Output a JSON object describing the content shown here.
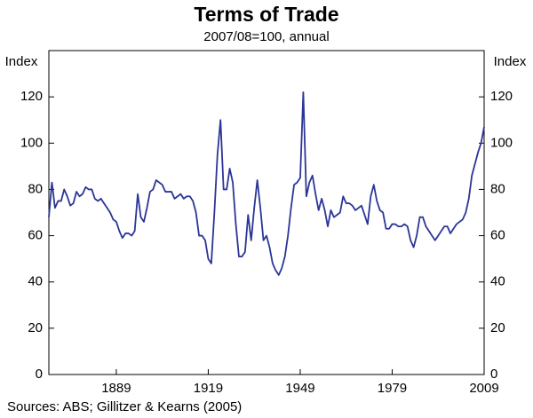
{
  "chart_data": {
    "type": "line",
    "title": "Terms of Trade",
    "subtitle": "2007/08=100, annual",
    "y_label": "Index",
    "y2_label": "Index",
    "source": "Sources: ABS; Gillitzer & Kearns (2005)",
    "xlim": [
      1867,
      2009
    ],
    "xticks": [
      1889,
      1919,
      1949,
      1979,
      2009
    ],
    "ylim": [
      0,
      140
    ],
    "yticks": [
      0,
      20,
      40,
      60,
      80,
      100,
      120
    ],
    "y2lim": [
      0,
      140
    ],
    "y2ticks": [
      0,
      20,
      40,
      60,
      80,
      100,
      120
    ],
    "x": [
      1867,
      1868,
      1869,
      1870,
      1871,
      1872,
      1873,
      1874,
      1875,
      1876,
      1877,
      1878,
      1879,
      1880,
      1881,
      1882,
      1883,
      1884,
      1885,
      1886,
      1887,
      1888,
      1889,
      1890,
      1891,
      1892,
      1893,
      1894,
      1895,
      1896,
      1897,
      1898,
      1899,
      1900,
      1901,
      1902,
      1903,
      1904,
      1905,
      1906,
      1907,
      1908,
      1909,
      1910,
      1911,
      1912,
      1913,
      1914,
      1915,
      1916,
      1917,
      1918,
      1919,
      1920,
      1921,
      1922,
      1923,
      1924,
      1925,
      1926,
      1927,
      1928,
      1929,
      1930,
      1931,
      1932,
      1933,
      1934,
      1935,
      1936,
      1937,
      1938,
      1939,
      1940,
      1941,
      1942,
      1943,
      1944,
      1945,
      1946,
      1947,
      1948,
      1949,
      1950,
      1951,
      1952,
      1953,
      1954,
      1955,
      1956,
      1957,
      1958,
      1959,
      1960,
      1961,
      1962,
      1963,
      1964,
      1965,
      1966,
      1967,
      1968,
      1969,
      1970,
      1971,
      1972,
      1973,
      1974,
      1975,
      1976,
      1977,
      1978,
      1979,
      1980,
      1981,
      1982,
      1983,
      1984,
      1985,
      1986,
      1987,
      1988,
      1989,
      1990,
      1991,
      1992,
      1993,
      1994,
      1995,
      1996,
      1997,
      1998,
      1999,
      2000,
      2001,
      2002,
      2003,
      2004,
      2005,
      2006,
      2007,
      2008,
      2009
    ],
    "series": [
      {
        "name": "Terms of Trade",
        "color": "#2b3596",
        "values": [
          68,
          83,
          72,
          75,
          75,
          80,
          77,
          73,
          74,
          79,
          77,
          78,
          81,
          80,
          80,
          76,
          75,
          76,
          74,
          72,
          70,
          67,
          66,
          62,
          59,
          61,
          61,
          60,
          62,
          78,
          68,
          66,
          72,
          79,
          80,
          84,
          83,
          82,
          79,
          79,
          79,
          76,
          77,
          78,
          76,
          77,
          77,
          75,
          70,
          60,
          60,
          58,
          50,
          48,
          70,
          95,
          110,
          80,
          80,
          89,
          83,
          65,
          51,
          51,
          53,
          69,
          58,
          72,
          84,
          72,
          58,
          60,
          55,
          48,
          45,
          43,
          46,
          51,
          60,
          72,
          82,
          83,
          85,
          122,
          77,
          83,
          86,
          78,
          71,
          76,
          71,
          64,
          71,
          68,
          69,
          70,
          77,
          74,
          74,
          73,
          71,
          72,
          73,
          69,
          65,
          77,
          82,
          75,
          71,
          70,
          63,
          63,
          65,
          65,
          64,
          64,
          65,
          64,
          58,
          55,
          60,
          68,
          68,
          64,
          62,
          60,
          58,
          60,
          62,
          64,
          64,
          61,
          63,
          65,
          66,
          67,
          70,
          76,
          86,
          91,
          96,
          100,
          107
        ]
      }
    ]
  }
}
